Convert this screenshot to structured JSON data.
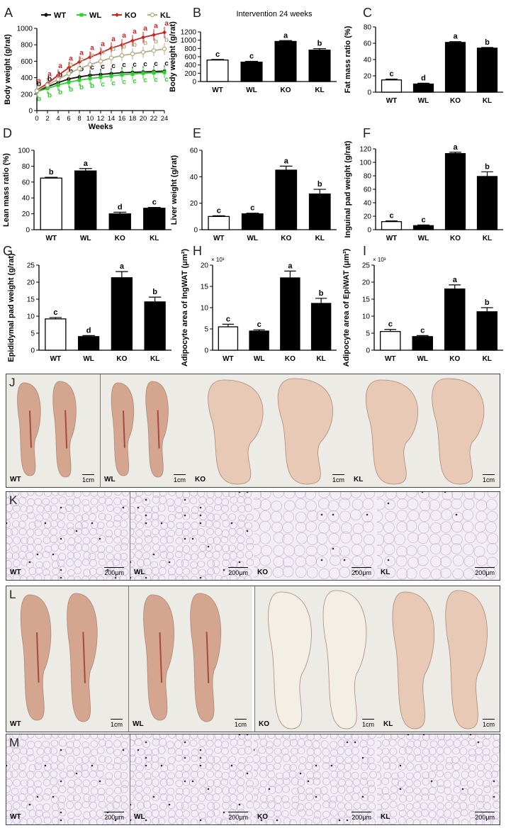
{
  "panels": {
    "A": {
      "letter": "A",
      "type": "line",
      "xlabel": "Weeks",
      "ylabel": "Body weight (g/rat)",
      "x": [
        0,
        2,
        4,
        6,
        8,
        10,
        12,
        14,
        16,
        18,
        20,
        22,
        24
      ],
      "xlim": [
        0,
        24
      ],
      "ylim": [
        0,
        1000
      ],
      "xticks": [
        "0",
        "2",
        "4",
        "6",
        "8",
        "10",
        "12",
        "14",
        "16",
        "18",
        "20",
        "22",
        "24"
      ],
      "yticks": [
        "0",
        "200",
        "400",
        "600",
        "800",
        "1000"
      ],
      "legend": [
        "WT",
        "WL",
        "KO",
        "KL"
      ],
      "series": [
        {
          "name": "WT",
          "color": "#111111",
          "marker": "circle",
          "values": [
            230,
            290,
            340,
            385,
            410,
            430,
            440,
            450,
            460,
            465,
            470,
            475,
            480
          ],
          "letters": [
            "b",
            "b",
            "b",
            "b",
            "b",
            "c",
            "c",
            "c",
            "c",
            "c",
            "c",
            "c",
            "c"
          ]
        },
        {
          "name": "WL",
          "color": "#33cc33",
          "marker": "square",
          "values": [
            230,
            270,
            310,
            345,
            370,
            390,
            405,
            420,
            435,
            445,
            455,
            460,
            465
          ],
          "letters": [
            "b",
            "b",
            "b",
            "b",
            "b",
            "b",
            "c",
            "c",
            "c",
            "c",
            "c",
            "c",
            "c"
          ]
        },
        {
          "name": "KO",
          "color": "#cc2222",
          "marker": "diamond",
          "values": [
            250,
            330,
            430,
            520,
            590,
            650,
            700,
            760,
            800,
            850,
            890,
            920,
            950
          ],
          "letters": [
            "a",
            "a",
            "a",
            "a",
            "a",
            "a",
            "a",
            "a",
            "a",
            "a",
            "a",
            "a",
            "a"
          ]
        },
        {
          "name": "KL",
          "color": "#b5ad86",
          "marker": "circle-open",
          "values": [
            240,
            310,
            380,
            450,
            510,
            560,
            600,
            640,
            670,
            690,
            710,
            730,
            750
          ],
          "letters": [
            "",
            "",
            "",
            "b",
            "b",
            "b",
            "b",
            "b",
            "b",
            "b",
            "b",
            "b",
            "b"
          ]
        }
      ]
    },
    "B": {
      "letter": "B",
      "title": "Intervention 24 weeks",
      "ylabel": "Body weight (g/rat)",
      "ylim": [
        0,
        1200
      ],
      "yticks": [
        "0",
        "200",
        "400",
        "600",
        "800",
        "1000",
        "1200"
      ],
      "categories": [
        "WT",
        "WL",
        "KO",
        "KL"
      ],
      "values": [
        520,
        470,
        970,
        760
      ],
      "errors": [
        15,
        20,
        20,
        35
      ],
      "letters": [
        "c",
        "c",
        "a",
        "b"
      ]
    },
    "C": {
      "letter": "C",
      "ylabel": "Fat mass ratio (%)",
      "ylim": [
        0,
        80
      ],
      "yticks": [
        "0",
        "20",
        "40",
        "60",
        "80"
      ],
      "categories": [
        "WT",
        "WL",
        "KO",
        "KL"
      ],
      "values": [
        15,
        10,
        61,
        54
      ],
      "errors": [
        1,
        1,
        1,
        0.8
      ],
      "letters": [
        "c",
        "d",
        "a",
        "b"
      ]
    },
    "D": {
      "letter": "D",
      "ylabel": "Lean mass ratio (%)",
      "ylim": [
        0,
        100
      ],
      "yticks": [
        "0",
        "20",
        "40",
        "60",
        "80",
        "100"
      ],
      "categories": [
        "WT",
        "WL",
        "KO",
        "KL"
      ],
      "values": [
        65,
        74,
        20,
        27
      ],
      "errors": [
        1,
        3,
        2,
        1
      ],
      "letters": [
        "b",
        "a",
        "d",
        "c"
      ]
    },
    "E": {
      "letter": "E",
      "ylabel": "Liver weight (g/rat)",
      "ylim": [
        0,
        60
      ],
      "yticks": [
        "0",
        "20",
        "40",
        "60"
      ],
      "categories": [
        "WT",
        "WL",
        "KO",
        "KL"
      ],
      "values": [
        10,
        12,
        45,
        27
      ],
      "errors": [
        0.5,
        0.5,
        3,
        3.5
      ],
      "letters": [
        "c",
        "c",
        "a",
        "b"
      ]
    },
    "F": {
      "letter": "F",
      "ylabel": "Inguinal pad weight (g/rat)",
      "ylim": [
        0,
        120
      ],
      "yticks": [
        "0",
        "20",
        "40",
        "60",
        "80",
        "100",
        "120"
      ],
      "categories": [
        "WT",
        "WL",
        "KO",
        "KL"
      ],
      "values": [
        12,
        6,
        113,
        79
      ],
      "errors": [
        1,
        1,
        2,
        7
      ],
      "letters": [
        "c",
        "c",
        "a",
        "b"
      ]
    },
    "G": {
      "letter": "G",
      "ylabel": "Epididymal pad weight (g/rat)",
      "ylim": [
        0,
        25
      ],
      "yticks": [
        "0",
        "5",
        "10",
        "15",
        "20",
        "25"
      ],
      "categories": [
        "WT",
        "WL",
        "KO",
        "KL"
      ],
      "values": [
        9.2,
        4,
        21.3,
        14.2
      ],
      "errors": [
        0.4,
        0.3,
        1.8,
        1.4
      ],
      "letters": [
        "c",
        "d",
        "a",
        "b"
      ]
    },
    "H": {
      "letter": "H",
      "ylabel": "Adipocyte area of IngWAT (μm²)",
      "yexp": "× 10³",
      "ylim": [
        0,
        20
      ],
      "yticks": [
        "0",
        "5",
        "10",
        "15",
        "20"
      ],
      "categories": [
        "WT",
        "WL",
        "KO",
        "KL"
      ],
      "values": [
        5.5,
        4.5,
        17,
        11
      ],
      "errors": [
        0.6,
        0.3,
        1.6,
        1.2
      ],
      "letters": [
        "c",
        "c",
        "a",
        "b"
      ]
    },
    "I": {
      "letter": "I",
      "ylabel": "Adipocyte area of EpiWAT (μm²)",
      "yexp": "× 10³",
      "ylim": [
        0,
        25
      ],
      "yticks": [
        "0",
        "5",
        "10",
        "15",
        "20",
        "25"
      ],
      "categories": [
        "WT",
        "WL",
        "KO",
        "KL"
      ],
      "values": [
        5.5,
        4,
        18,
        11.3
      ],
      "errors": [
        0.6,
        0.3,
        1.2,
        1.2
      ],
      "letters": [
        "c",
        "c",
        "a",
        "b"
      ]
    }
  },
  "photos": {
    "J": {
      "letter": "J",
      "labels": [
        "WT",
        "WL",
        "KO",
        "KL"
      ],
      "scale": [
        "1cm",
        "1cm",
        "1cm",
        "1cm"
      ]
    },
    "K": {
      "letter": "K",
      "labels": [
        "WT",
        "WL",
        "KO",
        "KL"
      ],
      "scale": [
        "200μm",
        "200μm",
        "200μm",
        "200μm"
      ]
    },
    "L": {
      "letter": "L",
      "labels": [
        "WT",
        "WL",
        "KO",
        "KL"
      ],
      "scale": [
        "1cm",
        "1cm",
        "1cm",
        "1cm"
      ]
    },
    "M": {
      "letter": "M",
      "labels": [
        "WT",
        "WL",
        "KO",
        "KL"
      ],
      "scale": [
        "200μm",
        "200μm",
        "200μm",
        "200μm"
      ]
    }
  },
  "colors": {
    "tissue": "#e8c9b6",
    "tissue_dark": "#d4a58f",
    "blood": "#a54b3e",
    "histo_bg": "#f3eef5",
    "histo_line": "#c9b7d4",
    "background_photo": "#ecebe6"
  }
}
